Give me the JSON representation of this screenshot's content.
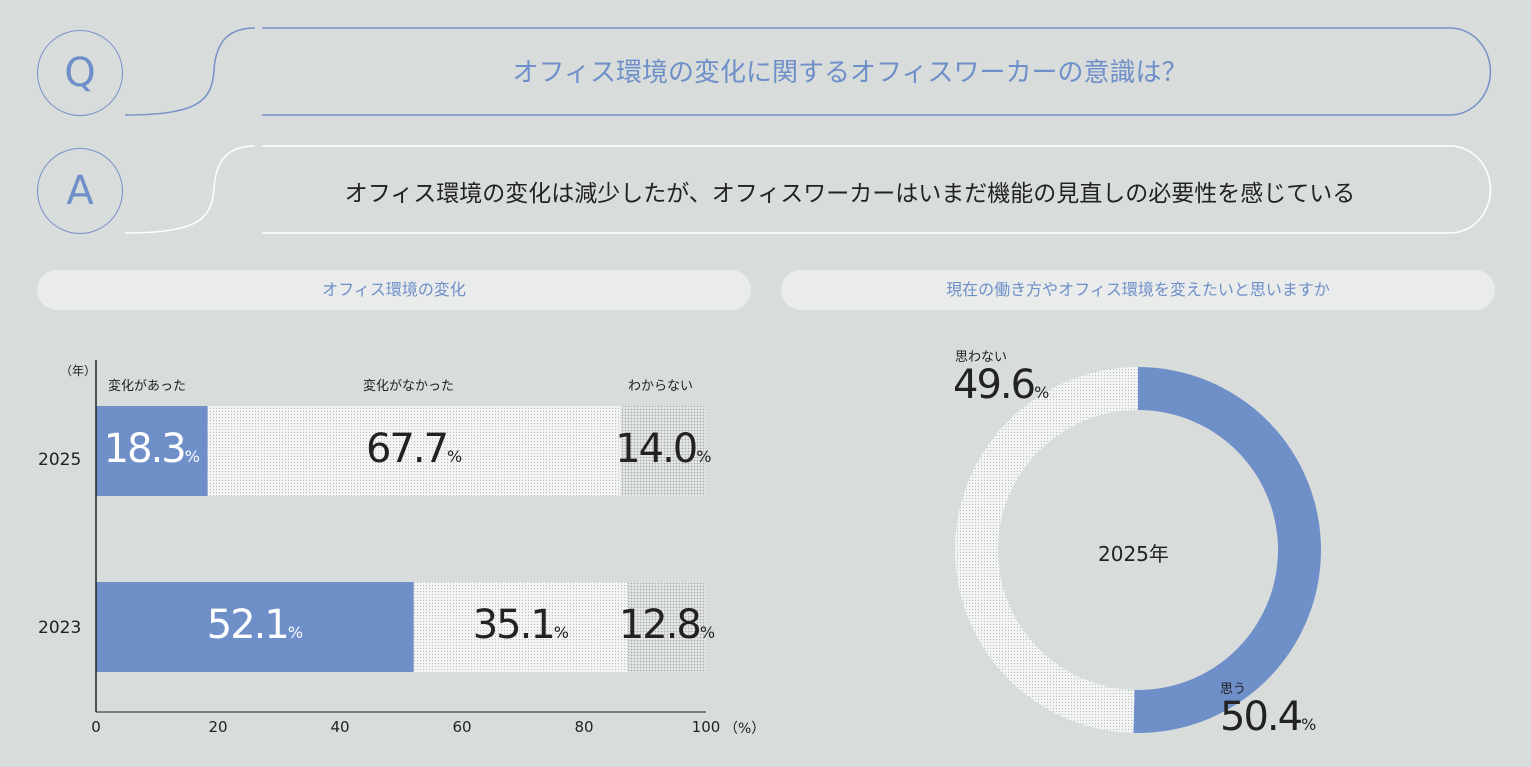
{
  "question": {
    "badge": "Q",
    "text": "オフィス環境の変化に関するオフィスワーカーの意識は？"
  },
  "answer": {
    "badge": "A",
    "text": "オフィス環境の変化は減少したが、オフィスワーカーはいまだ機能の見直しの必要性を感じている"
  },
  "colors": {
    "accent": "#6f8fc9",
    "background": "#d8dddc"
  },
  "chart_data": [
    {
      "type": "bar",
      "stacked": true,
      "orientation": "horizontal",
      "title": "オフィス環境の変化",
      "ylabel": "（年）",
      "xlabel": "（%）",
      "categories": [
        "2025",
        "2023"
      ],
      "series": [
        {
          "name": "変化があった",
          "values": [
            18.3,
            52.1
          ]
        },
        {
          "name": "変化がなかった",
          "values": [
            67.7,
            35.1
          ]
        },
        {
          "name": "わからない",
          "values": [
            14.0,
            12.8
          ]
        }
      ],
      "xlim": [
        0,
        100
      ],
      "xticks": [
        "0",
        "20",
        "40",
        "60",
        "80",
        "100"
      ],
      "unit": "%"
    },
    {
      "type": "pie",
      "donut": true,
      "title": "現在の働き方やオフィス環境を変えたいと思いますか",
      "center_label": "2025年",
      "labels": [
        "思う",
        "思わない"
      ],
      "values": [
        50.4,
        49.6
      ],
      "unit": "%"
    }
  ]
}
